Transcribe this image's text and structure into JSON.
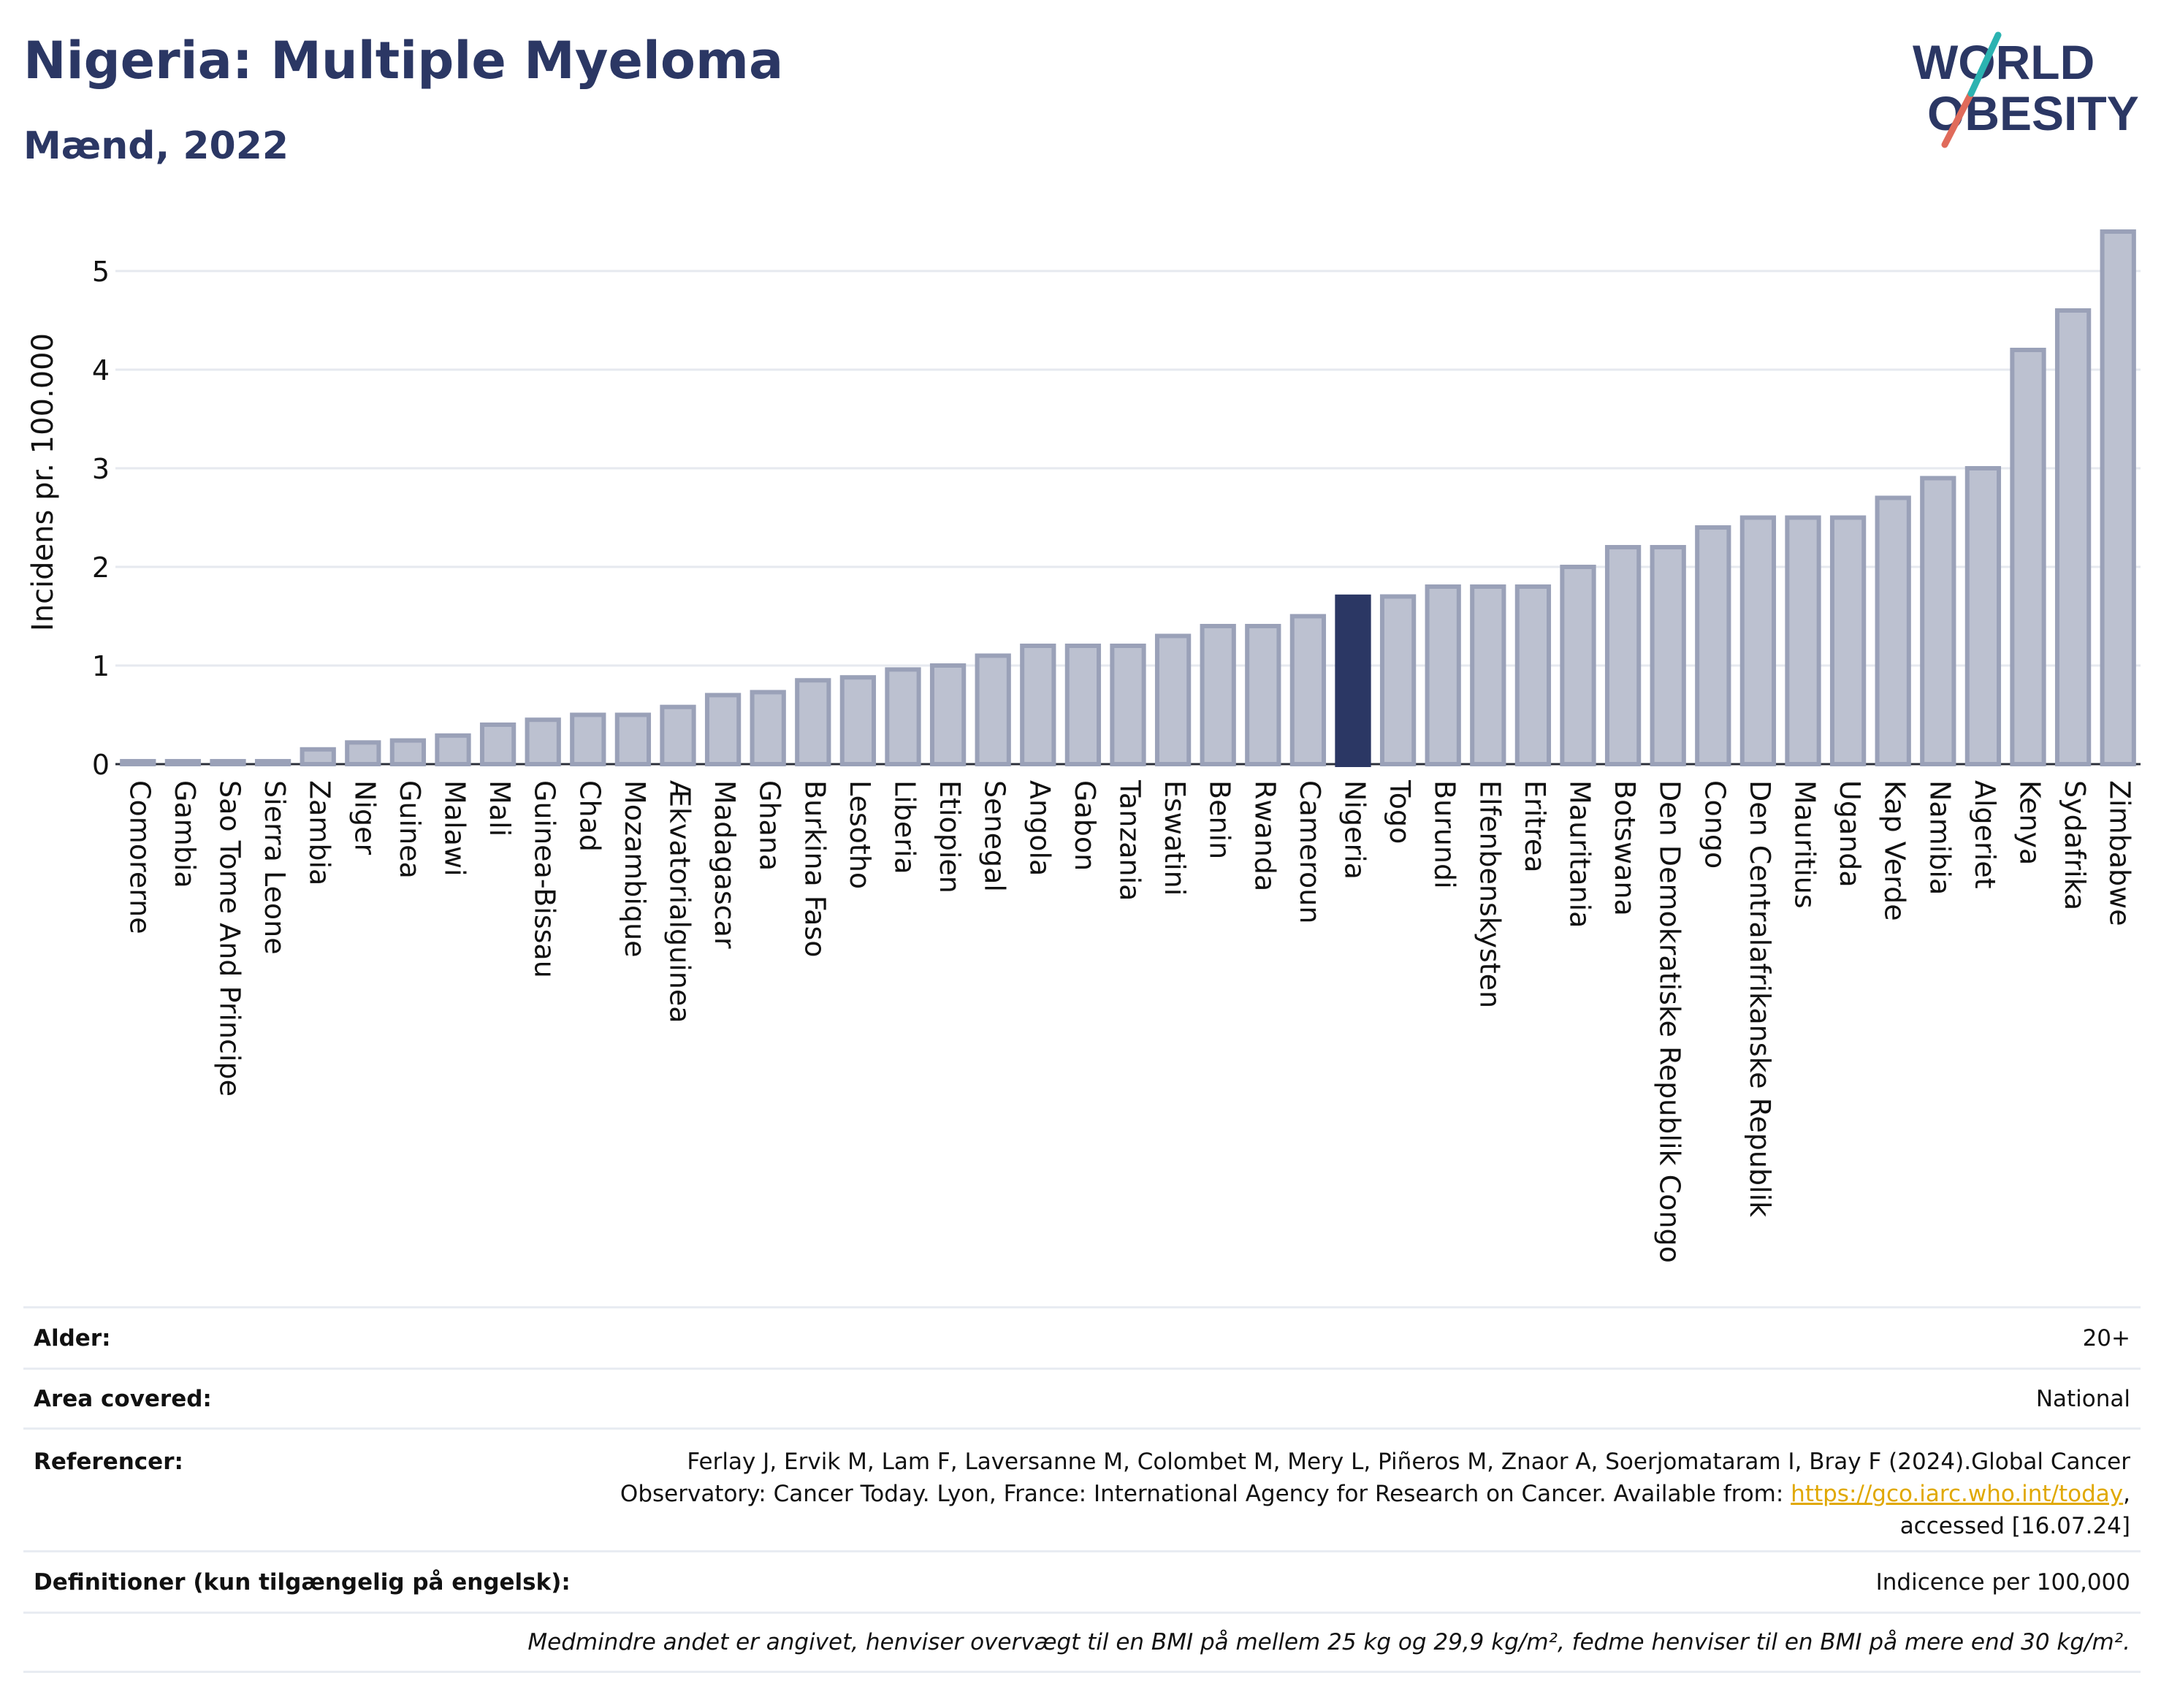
{
  "title": "Nigeria: Multiple Myeloma",
  "subtitle": "Mænd, 2022",
  "logo": {
    "line1": "WORLD",
    "line2": "OBESITY"
  },
  "chart_data": {
    "type": "bar",
    "ylabel": "Incidens pr. 100.000",
    "ylim": [
      0,
      5.5
    ],
    "yticks": [
      0,
      1,
      2,
      3,
      4,
      5
    ],
    "highlight": "Nigeria",
    "colors": {
      "bar": "#bcc1d0",
      "bar_edge": "#9aa1b8",
      "highlight": "#2b3764",
      "grid": "#e6e9ef"
    },
    "categories": [
      "Comorerne",
      "Gambia",
      "Sao Tome And Principe",
      "Sierra Leone",
      "Zambia",
      "Niger",
      "Guinea",
      "Malawi",
      "Mali",
      "Guinea-Bissau",
      "Chad",
      "Mozambique",
      "Ækvatorialguinea",
      "Madagascar",
      "Ghana",
      "Burkina Faso",
      "Lesotho",
      "Liberia",
      "Etiopien",
      "Senegal",
      "Angola",
      "Gabon",
      "Tanzania",
      "Eswatini",
      "Benin",
      "Rwanda",
      "Cameroun",
      "Nigeria",
      "Togo",
      "Burundi",
      "Elfenbenskysten",
      "Eritrea",
      "Mauritania",
      "Botswana",
      "Den Demokratiske Republik Congo",
      "Congo",
      "Den Centralafrikanske Republik",
      "Mauritius",
      "Uganda",
      "Kap Verde",
      "Namibia",
      "Algeriet",
      "Kenya",
      "Sydafrika",
      "Zimbabwe"
    ],
    "values": [
      0.03,
      0.03,
      0.03,
      0.03,
      0.15,
      0.22,
      0.24,
      0.29,
      0.4,
      0.45,
      0.5,
      0.5,
      0.58,
      0.7,
      0.73,
      0.85,
      0.88,
      0.96,
      1.0,
      1.1,
      1.2,
      1.2,
      1.2,
      1.3,
      1.4,
      1.4,
      1.5,
      1.72,
      1.7,
      1.8,
      1.8,
      1.8,
      2.0,
      2.2,
      2.2,
      2.4,
      2.5,
      2.5,
      2.5,
      2.7,
      2.9,
      3.0,
      4.2,
      4.6,
      5.4
    ]
  },
  "info": {
    "age_label": "Alder:",
    "age_value": "20+",
    "area_label": "Area covered:",
    "area_value": "National",
    "ref_label": "Referencer:",
    "ref_line1": "Ferlay J, Ervik M, Lam F, Laversanne M, Colombet M, Mery L, Piñeros M, Znaor A, Soerjomataram I, Bray F (2024).Global Cancer",
    "ref_line2_pre": "Observatory: Cancer Today. Lyon, France: International Agency for Research on Cancer. Available from: ",
    "ref_link": "https://gco.iarc.who.int/today",
    "ref_line2_post": ",",
    "ref_line3": "accessed [16.07.24]",
    "def_label": "Definitioner (kun tilgængelig på engelsk):",
    "def_value": "Indicence per 100,000",
    "footnote": "Medmindre andet er angivet, henviser overvægt til en BMI på mellem 25 kg og 29,9 kg/m², fedme henviser til en BMI på mere end 30 kg/m²."
  }
}
